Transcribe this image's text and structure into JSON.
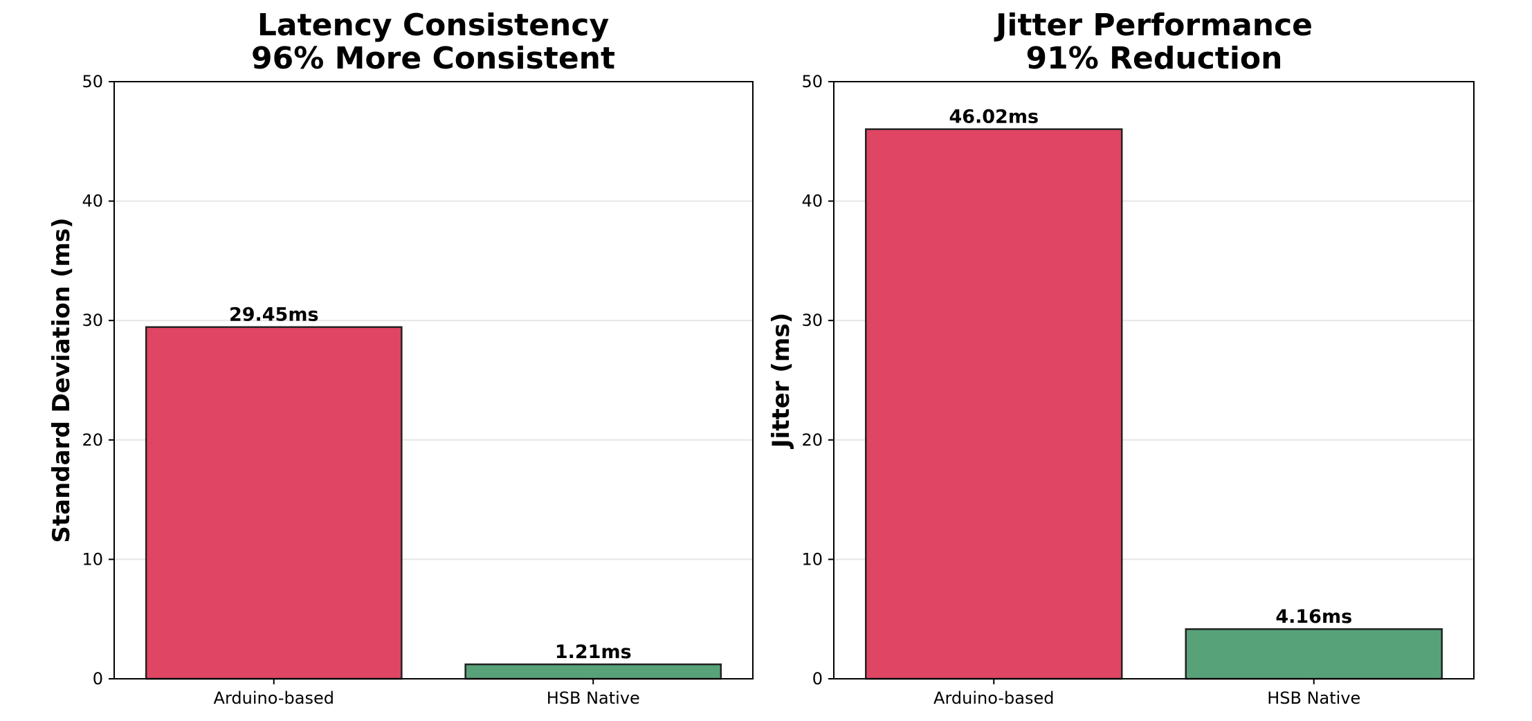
{
  "chart_data": [
    {
      "type": "bar",
      "title": "Latency Consistency\n96% More Consistent",
      "title_lines": [
        "Latency Consistency",
        "96% More Consistent"
      ],
      "xlabel": "",
      "ylabel": "Standard Deviation (ms)",
      "categories": [
        "Arduino-based",
        "HSB Native"
      ],
      "values": [
        29.45,
        1.21
      ],
      "value_labels": [
        "29.45ms",
        "1.21ms"
      ],
      "colors": [
        "#e04563",
        "#58a279"
      ],
      "ylim": [
        0,
        50
      ],
      "yticks": [
        0,
        10,
        20,
        30,
        40,
        50
      ],
      "grid": "y"
    },
    {
      "type": "bar",
      "title": "Jitter Performance\n91% Reduction",
      "title_lines": [
        "Jitter Performance",
        "91% Reduction"
      ],
      "xlabel": "",
      "ylabel": "Jitter (ms)",
      "categories": [
        "Arduino-based",
        "HSB Native"
      ],
      "values": [
        46.02,
        4.16
      ],
      "value_labels": [
        "46.02ms",
        "4.16ms"
      ],
      "colors": [
        "#e04563",
        "#58a279"
      ],
      "ylim": [
        0,
        50
      ],
      "yticks": [
        0,
        10,
        20,
        30,
        40,
        50
      ],
      "grid": "y"
    }
  ]
}
